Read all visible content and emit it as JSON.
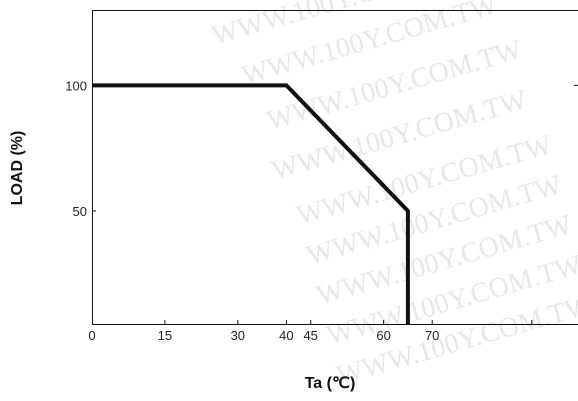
{
  "chart_data": {
    "type": "line",
    "title": "",
    "xlabel": "Ta (℃)",
    "ylabel": "LOAD (%)",
    "x_ticks": [
      0,
      15,
      30,
      40,
      45,
      60,
      70
    ],
    "y_ticks": [
      50,
      100
    ],
    "xlim": [
      0,
      100
    ],
    "ylim": [
      5,
      130
    ],
    "series": [
      {
        "x": [
          0,
          40,
          65,
          65
        ],
        "y": [
          100,
          100,
          50,
          5
        ]
      }
    ],
    "grid": false,
    "legend": "none",
    "line_color": "#111111"
  },
  "watermark": {
    "text": "WWW.100Y.COM.TW",
    "color": "#e7e7e7"
  }
}
